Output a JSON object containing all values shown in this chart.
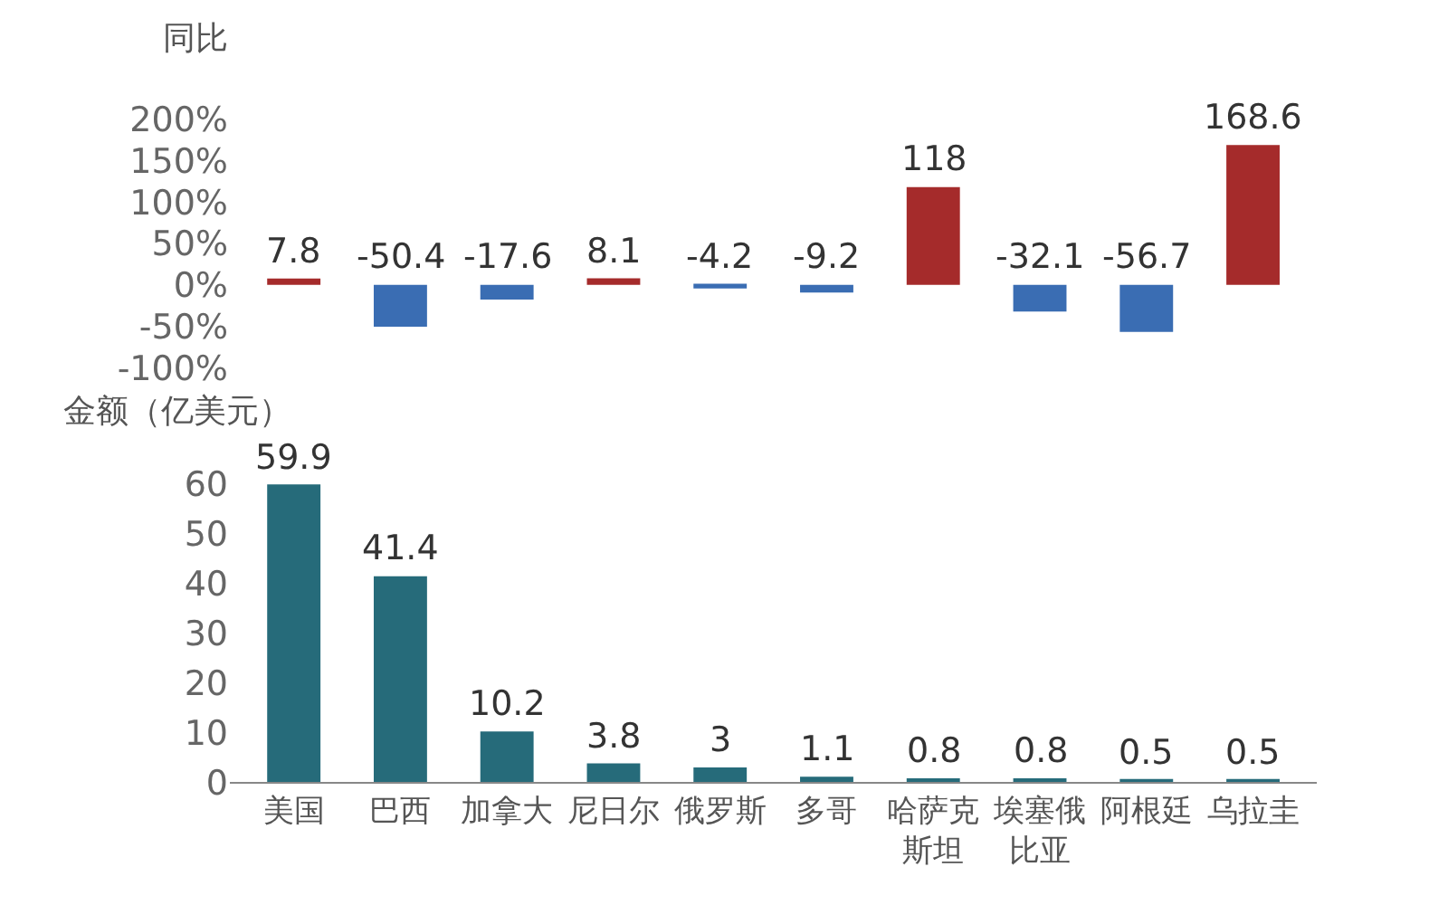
{
  "chart_data": [
    {
      "type": "bar",
      "ylabel": "同比",
      "categories": [
        "美国",
        "巴西",
        "加拿大",
        "尼日尔",
        "俄罗斯",
        "多哥",
        "哈萨克斯坦",
        "埃塞俄比亚",
        "阿根廷",
        "乌拉圭"
      ],
      "values": [
        7.8,
        -50.4,
        -17.6,
        8.1,
        -4.2,
        -9.2,
        118,
        -32.1,
        -56.7,
        168.6
      ],
      "colors": [
        "#a52b2b",
        "#3a6db3",
        "#3a6db3",
        "#a52b2b",
        "#3a6db3",
        "#3a6db3",
        "#a52b2b",
        "#3a6db3",
        "#3a6db3",
        "#a52b2b"
      ],
      "ylim": [
        -100,
        200
      ],
      "yticks": [
        {
          "value": -100,
          "label": "-100%"
        },
        {
          "value": -50,
          "label": "-50%"
        },
        {
          "value": 0,
          "label": "0%"
        },
        {
          "value": 50,
          "label": "50%"
        },
        {
          "value": 100,
          "label": "100%"
        },
        {
          "value": 150,
          "label": "150%"
        },
        {
          "value": 200,
          "label": "200%"
        }
      ],
      "tick_labels": "y",
      "data_labels": true
    },
    {
      "type": "bar",
      "ylabel": "金额（亿美元）",
      "categories": [
        "美国",
        "巴西",
        "加拿大",
        "尼日尔",
        "俄罗斯",
        "多哥",
        "哈萨克斯坦",
        "埃塞俄比亚",
        "阿根廷",
        "乌拉圭"
      ],
      "values": [
        59.9,
        41.4,
        10.2,
        3.8,
        3,
        1.1,
        0.8,
        0.8,
        0.5,
        0.5
      ],
      "color": "#266b7a",
      "ylim": [
        0,
        60
      ],
      "yticks": [
        0,
        10,
        20,
        30,
        40,
        50,
        60
      ],
      "data_labels": true
    }
  ]
}
